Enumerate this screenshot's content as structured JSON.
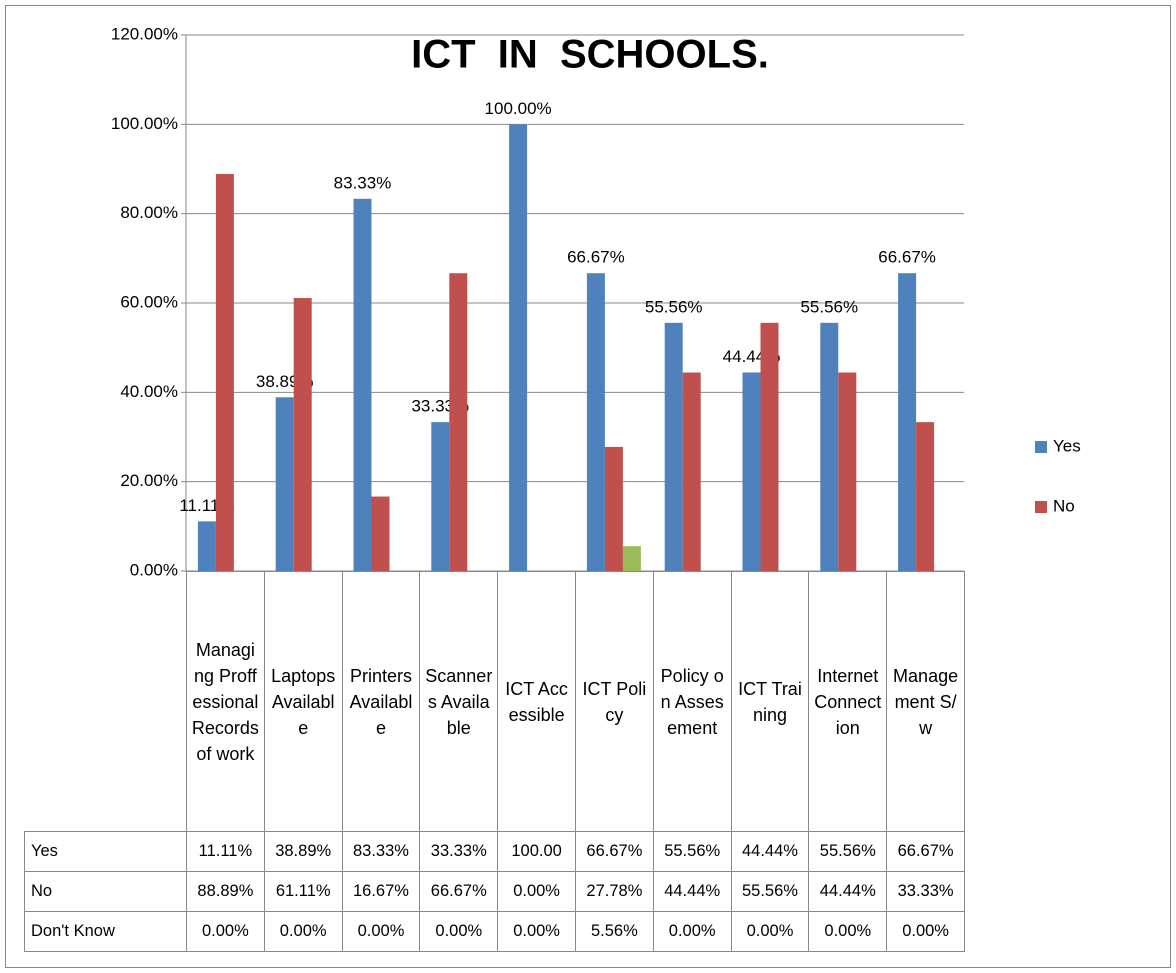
{
  "chart_data": {
    "type": "bar",
    "title": "ICT  IN  SCHOOLS.",
    "categories": [
      "Managing Proffessional Records of work",
      "Laptops Available",
      "Printers Available",
      "Scanners Available",
      "ICT Accessible",
      "ICT Policy",
      "Policy on Assesement",
      "ICT Training",
      "Internet Connection",
      "Management S/w"
    ],
    "series": [
      {
        "name": "Yes",
        "color": "#4f81bd",
        "in_legend": true,
        "values": [
          11.11,
          38.89,
          83.33,
          33.33,
          100,
          66.67,
          55.56,
          44.44,
          55.56,
          66.67
        ],
        "value_labels": [
          "11.11%",
          "38.89%",
          "83.33%",
          "33.33%",
          "100.00%",
          "66.67%",
          "55.56%",
          "44.44%",
          "55.56%",
          "66.67%"
        ],
        "table_labels": [
          "11.11%",
          "38.89%",
          "83.33%",
          "33.33%",
          "100.00",
          "66.67%",
          "55.56%",
          "44.44%",
          "55.56%",
          "66.67%"
        ]
      },
      {
        "name": "No",
        "color": "#c0504d",
        "in_legend": true,
        "values": [
          88.89,
          61.11,
          16.67,
          66.67,
          0,
          27.78,
          44.44,
          55.56,
          44.44,
          33.33
        ],
        "table_labels": [
          "88.89%",
          "61.11%",
          "16.67%",
          "66.67%",
          "0.00%",
          "27.78%",
          "44.44%",
          "55.56%",
          "44.44%",
          "33.33%"
        ]
      },
      {
        "name": "Don't Know",
        "color": "#9bbb59",
        "in_legend": false,
        "values": [
          0,
          0,
          0,
          0,
          0,
          5.56,
          0,
          0,
          0,
          0
        ],
        "table_labels": [
          "0.00%",
          "0.00%",
          "0.00%",
          "0.00%",
          "0.00%",
          "5.56%",
          "0.00%",
          "0.00%",
          "0.00%",
          "0.00%"
        ]
      }
    ],
    "ylim": [
      0,
      120
    ],
    "yticks": [
      {
        "value": 0,
        "label": "0.00%"
      },
      {
        "value": 20,
        "label": "20.00%"
      },
      {
        "value": 40,
        "label": "40.00%"
      },
      {
        "value": 60,
        "label": "60.00%"
      },
      {
        "value": 80,
        "label": "80.00%"
      },
      {
        "value": 100,
        "label": "100.00%"
      },
      {
        "value": 120,
        "label": "120.00%"
      }
    ],
    "grid": true,
    "legend": "right",
    "data_table": true
  }
}
